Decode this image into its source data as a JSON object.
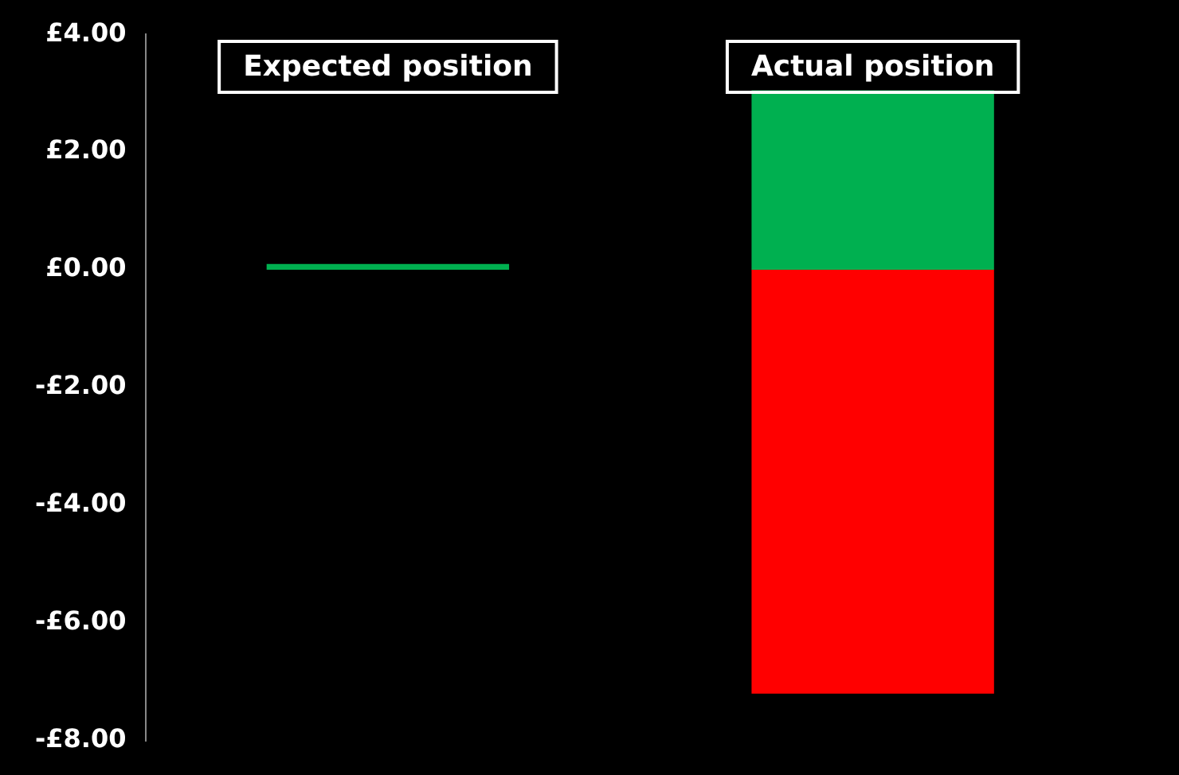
{
  "chart_data": {
    "type": "bar",
    "stacked": true,
    "categories": [
      "Expected position",
      "Actual position"
    ],
    "series": [
      {
        "color": "#00b050",
        "values": [
          0.1,
          3.05
        ]
      },
      {
        "color": "#ff0000",
        "values": [
          null,
          -7.2
        ]
      }
    ],
    "ylim": [
      -8,
      4
    ],
    "yticks": [
      {
        "value": -8,
        "label": "-£8.00"
      },
      {
        "value": -6,
        "label": "-£6.00"
      },
      {
        "value": -4,
        "label": "-£4.00"
      },
      {
        "value": -2,
        "label": "-£2.00"
      },
      {
        "value": 0,
        "label": "£0.00"
      },
      {
        "value": 2,
        "label": "£2.00"
      },
      {
        "value": 4,
        "label": "£4.00"
      }
    ],
    "grid": false,
    "legend": false
  }
}
